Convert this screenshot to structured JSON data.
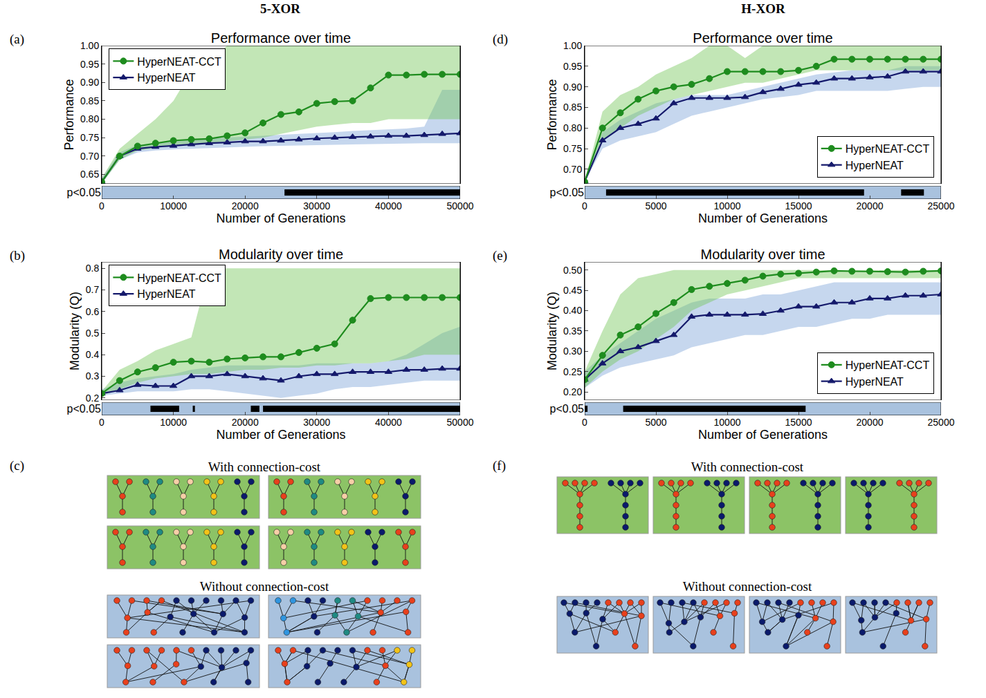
{
  "headers": [
    "5-XOR",
    "H-XOR"
  ],
  "chart_data": [
    {
      "type": "line",
      "panel": "(a)",
      "title": "Performance over time",
      "x_label": "Number of Generations",
      "y_label": "Performance",
      "xlim": [
        0,
        50000
      ],
      "xticks": [
        0,
        10000,
        20000,
        30000,
        40000,
        50000
      ],
      "ylim": [
        0.625,
        1.0
      ],
      "yticks": [
        0.65,
        {
          "value": 0.7,
          "label": "0.70"
        },
        0.75,
        {
          "value": 0.8,
          "label": "0.80"
        },
        0.85,
        {
          "value": 0.9,
          "label": "0.90"
        },
        0.95,
        {
          "value": 1.0,
          "label": "1.00"
        }
      ],
      "grid": false,
      "legend": "upper left",
      "x": [
        0,
        2500,
        5000,
        7500,
        10000,
        12500,
        15000,
        17500,
        20000,
        22500,
        25000,
        27500,
        30000,
        32500,
        35000,
        37500,
        40000,
        42500,
        45000,
        47500,
        50000
      ],
      "series": [
        {
          "name": "HyperNEAT",
          "color": "#14196b",
          "marker": "triangle",
          "line_style": "solid",
          "values": [
            0.63,
            0.7,
            0.72,
            0.725,
            0.728,
            0.732,
            0.735,
            0.737,
            0.74,
            0.74,
            0.742,
            0.745,
            0.748,
            0.75,
            0.752,
            0.753,
            0.755,
            0.755,
            0.757,
            0.76,
            0.762
          ],
          "lower": [
            0.625,
            0.69,
            0.71,
            0.715,
            0.718,
            0.72,
            0.722,
            0.724,
            0.726,
            0.727,
            0.728,
            0.729,
            0.73,
            0.731,
            0.732,
            0.733,
            0.734,
            0.735,
            0.735,
            0.735,
            0.735
          ],
          "upper": [
            0.64,
            0.71,
            0.73,
            0.735,
            0.74,
            0.745,
            0.748,
            0.75,
            0.752,
            0.755,
            0.758,
            0.76,
            0.762,
            0.765,
            0.768,
            0.77,
            0.772,
            0.775,
            0.78,
            0.88,
            0.88
          ]
        },
        {
          "name": "HyperNEAT-CCT",
          "color": "#1e8c1e",
          "marker": "circle",
          "line_style": "solid",
          "values": [
            0.63,
            0.7,
            0.727,
            0.735,
            0.742,
            0.745,
            0.747,
            0.755,
            0.763,
            0.79,
            0.813,
            0.82,
            0.843,
            0.848,
            0.85,
            0.885,
            0.92,
            0.92,
            0.922,
            0.922,
            0.922
          ],
          "lower": [
            0.625,
            0.69,
            0.715,
            0.722,
            0.728,
            0.732,
            0.735,
            0.74,
            0.745,
            0.75,
            0.76,
            0.77,
            0.78,
            0.785,
            0.79,
            0.79,
            0.8,
            0.8,
            0.8,
            0.8,
            0.8
          ],
          "upper": [
            0.64,
            0.72,
            0.76,
            0.8,
            0.85,
            0.93,
            0.96,
            1.0,
            1.0,
            1.0,
            1.0,
            1.0,
            1.0,
            1.0,
            1.0,
            1.0,
            1.0,
            1.0,
            1.0,
            1.0,
            1.0
          ]
        }
      ],
      "significance": {
        "label": "p<0.05",
        "intervals": [
          [
            25500,
            50000
          ]
        ]
      }
    },
    {
      "type": "line",
      "panel": "(b)",
      "title": "Modularity over time",
      "x_label": "Number of Generations",
      "y_label": "Modularity (Q)",
      "xlim": [
        0,
        50000
      ],
      "xticks": [
        0,
        10000,
        20000,
        30000,
        40000,
        50000
      ],
      "ylim": [
        0.19,
        0.83
      ],
      "yticks": [
        0.2,
        0.3,
        0.4,
        0.5,
        0.6,
        0.7,
        0.8
      ],
      "grid": false,
      "legend": "upper left",
      "x": [
        0,
        2500,
        5000,
        7500,
        10000,
        12500,
        15000,
        17500,
        20000,
        22500,
        25000,
        27500,
        30000,
        32500,
        35000,
        37500,
        40000,
        42500,
        45000,
        47500,
        50000
      ],
      "series": [
        {
          "name": "HyperNEAT",
          "color": "#14196b",
          "marker": "triangle",
          "line_style": "solid",
          "values": [
            0.22,
            0.235,
            0.26,
            0.255,
            0.255,
            0.3,
            0.3,
            0.31,
            0.3,
            0.29,
            0.28,
            0.3,
            0.31,
            0.31,
            0.32,
            0.32,
            0.32,
            0.33,
            0.33,
            0.335,
            0.335
          ],
          "lower": [
            0.21,
            0.22,
            0.23,
            0.23,
            0.23,
            0.24,
            0.24,
            0.23,
            0.22,
            0.21,
            0.2,
            0.21,
            0.22,
            0.24,
            0.25,
            0.25,
            0.26,
            0.27,
            0.28,
            0.28,
            0.28
          ],
          "upper": [
            0.24,
            0.27,
            0.29,
            0.3,
            0.31,
            0.33,
            0.34,
            0.35,
            0.35,
            0.35,
            0.35,
            0.35,
            0.36,
            0.36,
            0.36,
            0.36,
            0.37,
            0.4,
            0.45,
            0.5,
            0.53
          ]
        },
        {
          "name": "HyperNEAT-CCT",
          "color": "#1e8c1e",
          "marker": "circle",
          "line_style": "solid",
          "values": [
            0.22,
            0.28,
            0.32,
            0.34,
            0.365,
            0.37,
            0.365,
            0.38,
            0.385,
            0.39,
            0.39,
            0.41,
            0.43,
            0.45,
            0.56,
            0.66,
            0.665,
            0.665,
            0.665,
            0.665,
            0.665
          ],
          "lower": [
            0.21,
            0.24,
            0.27,
            0.29,
            0.3,
            0.31,
            0.31,
            0.32,
            0.33,
            0.33,
            0.34,
            0.34,
            0.35,
            0.35,
            0.36,
            0.36,
            0.37,
            0.38,
            0.4,
            0.4,
            0.4
          ],
          "upper": [
            0.23,
            0.33,
            0.37,
            0.42,
            0.45,
            0.48,
            0.8,
            0.8,
            0.8,
            0.8,
            0.8,
            0.8,
            0.8,
            0.8,
            0.8,
            0.8,
            0.8,
            0.8,
            0.8,
            0.8,
            0.8
          ]
        }
      ],
      "significance": {
        "label": "p<0.05",
        "intervals": [
          [
            6800,
            10800
          ],
          [
            12700,
            13000
          ],
          [
            20800,
            22000
          ],
          [
            22500,
            50000
          ]
        ]
      }
    },
    {
      "type": "line",
      "panel": "(d)",
      "title": "Performance over time",
      "x_label": "Number of Generations",
      "y_label": "Performance",
      "xlim": [
        0,
        25000
      ],
      "xticks": [
        0,
        5000,
        10000,
        15000,
        20000,
        25000
      ],
      "ylim": [
        0.665,
        1.0
      ],
      "yticks": [
        {
          "value": 0.7,
          "label": "0.70"
        },
        0.75,
        {
          "value": 0.8,
          "label": "0.80"
        },
        0.85,
        {
          "value": 0.9,
          "label": "0.90"
        },
        0.95,
        {
          "value": 1.0,
          "label": "1.00"
        }
      ],
      "grid": false,
      "legend": "lower right",
      "x": [
        0,
        1250,
        2500,
        3750,
        5000,
        6250,
        7500,
        8750,
        10000,
        11250,
        12500,
        13750,
        15000,
        16250,
        17500,
        18750,
        20000,
        21250,
        22500,
        23750,
        25000
      ],
      "series": [
        {
          "name": "HyperNEAT",
          "color": "#14196b",
          "marker": "triangle",
          "line_style": "solid",
          "values": [
            0.67,
            0.77,
            0.8,
            0.81,
            0.823,
            0.86,
            0.873,
            0.873,
            0.873,
            0.875,
            0.887,
            0.895,
            0.905,
            0.91,
            0.92,
            0.92,
            0.923,
            0.925,
            0.937,
            0.937,
            0.937
          ],
          "lower": [
            0.67,
            0.75,
            0.77,
            0.78,
            0.79,
            0.81,
            0.83,
            0.84,
            0.85,
            0.86,
            0.87,
            0.875,
            0.88,
            0.89,
            0.89,
            0.89,
            0.89,
            0.89,
            0.895,
            0.9,
            0.9
          ],
          "upper": [
            0.67,
            0.79,
            0.82,
            0.84,
            0.86,
            0.87,
            0.88,
            0.88,
            0.88,
            0.89,
            0.9,
            0.91,
            0.92,
            0.93,
            0.935,
            0.94,
            0.94,
            0.94,
            0.95,
            0.95,
            0.95
          ]
        },
        {
          "name": "HyperNEAT-CCT",
          "color": "#1e8c1e",
          "marker": "circle",
          "line_style": "solid",
          "values": [
            0.67,
            0.8,
            0.837,
            0.87,
            0.89,
            0.9,
            0.906,
            0.92,
            0.937,
            0.937,
            0.937,
            0.937,
            0.94,
            0.95,
            0.967,
            0.967,
            0.967,
            0.967,
            0.967,
            0.967,
            0.967
          ],
          "lower": [
            0.67,
            0.77,
            0.8,
            0.83,
            0.85,
            0.87,
            0.88,
            0.89,
            0.9,
            0.91,
            0.91,
            0.92,
            0.93,
            0.94,
            0.94,
            0.94,
            0.94,
            0.94,
            0.94,
            0.94,
            0.94
          ],
          "upper": [
            0.67,
            0.84,
            0.88,
            0.9,
            0.93,
            0.95,
            0.97,
            1.0,
            1.0,
            0.97,
            1.0,
            1.0,
            1.0,
            1.0,
            1.0,
            1.0,
            1.0,
            1.0,
            1.0,
            1.0,
            1.0
          ]
        }
      ],
      "significance": {
        "label": "p<0.05",
        "intervals": [
          [
            1500,
            19600
          ],
          [
            22200,
            23800
          ]
        ]
      }
    },
    {
      "type": "line",
      "panel": "(e)",
      "title": "Modularity over time",
      "x_label": "Number of Generations",
      "y_label": "Modularity (Q)",
      "xlim": [
        0,
        25000
      ],
      "xticks": [
        0,
        5000,
        10000,
        15000,
        20000,
        25000
      ],
      "ylim": [
        0.18,
        0.52
      ],
      "yticks": [
        {
          "value": 0.2,
          "label": "0.20"
        },
        0.25,
        {
          "value": 0.3,
          "label": "0.30"
        },
        0.35,
        {
          "value": 0.4,
          "label": "0.40"
        },
        0.45,
        {
          "value": 0.5,
          "label": "0.50"
        }
      ],
      "grid": false,
      "legend": "lower right",
      "x": [
        0,
        1250,
        2500,
        3750,
        5000,
        6250,
        7500,
        8750,
        10000,
        11250,
        12500,
        13750,
        15000,
        16250,
        17500,
        18750,
        20000,
        21250,
        22500,
        23750,
        25000
      ],
      "series": [
        {
          "name": "HyperNEAT",
          "color": "#14196b",
          "marker": "triangle",
          "line_style": "solid",
          "values": [
            0.23,
            0.27,
            0.3,
            0.31,
            0.325,
            0.34,
            0.385,
            0.39,
            0.39,
            0.39,
            0.392,
            0.4,
            0.41,
            0.41,
            0.42,
            0.42,
            0.43,
            0.43,
            0.437,
            0.437,
            0.44
          ],
          "lower": [
            0.21,
            0.24,
            0.26,
            0.27,
            0.28,
            0.29,
            0.31,
            0.32,
            0.33,
            0.34,
            0.34,
            0.35,
            0.36,
            0.36,
            0.37,
            0.38,
            0.38,
            0.39,
            0.39,
            0.39,
            0.39
          ],
          "upper": [
            0.25,
            0.29,
            0.32,
            0.35,
            0.38,
            0.4,
            0.42,
            0.43,
            0.43,
            0.43,
            0.44,
            0.44,
            0.45,
            0.46,
            0.47,
            0.47,
            0.47,
            0.47,
            0.47,
            0.47,
            0.47
          ]
        },
        {
          "name": "HyperNEAT-CCT",
          "color": "#1e8c1e",
          "marker": "circle",
          "line_style": "solid",
          "values": [
            0.23,
            0.29,
            0.34,
            0.36,
            0.393,
            0.42,
            0.452,
            0.46,
            0.467,
            0.475,
            0.485,
            0.49,
            0.492,
            0.495,
            0.498,
            0.497,
            0.497,
            0.496,
            0.495,
            0.497,
            0.498
          ],
          "lower": [
            0.21,
            0.25,
            0.28,
            0.3,
            0.33,
            0.36,
            0.4,
            0.42,
            0.44,
            0.45,
            0.46,
            0.47,
            0.48,
            0.48,
            0.48,
            0.48,
            0.48,
            0.48,
            0.48,
            0.48,
            0.48
          ],
          "upper": [
            0.25,
            0.35,
            0.44,
            0.48,
            0.49,
            0.5,
            0.5,
            0.5,
            0.5,
            0.5,
            0.5,
            0.5,
            0.5,
            0.5,
            0.5,
            0.5,
            0.5,
            0.5,
            0.5,
            0.5,
            0.5
          ]
        }
      ],
      "significance": {
        "label": "p<0.05",
        "intervals": [
          [
            0,
            200
          ],
          [
            2700,
            15500
          ]
        ]
      }
    }
  ],
  "diagrams": [
    {
      "panel": "(c)",
      "with_title": "With connection-cost",
      "without_title": "Without connection-cost"
    },
    {
      "panel": "(f)",
      "with_title": "With connection-cost",
      "without_title": "Without connection-cost"
    }
  ]
}
